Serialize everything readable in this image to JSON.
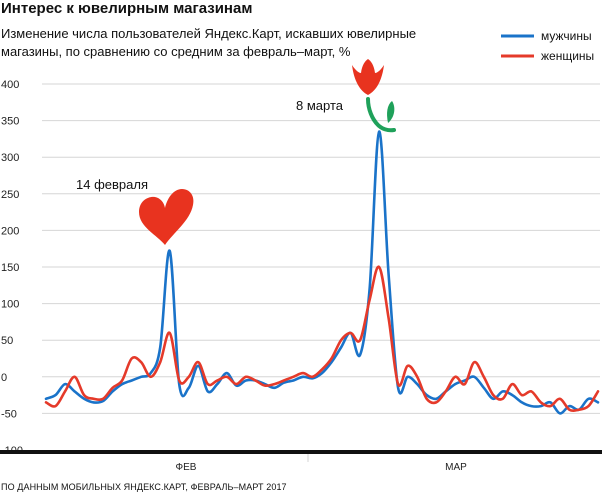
{
  "title": "Интерес к ювелирным магазинам",
  "subtitle": "Изменение числа пользователей Яндекс.Карт, искавших ювелирные магазины, по сравнению со средним за февраль–март, %",
  "source": "ПО ДАННЫМ МОБИЛЬНЫХ ЯНДЕКС.КАРТ, ФЕВРАЛЬ–МАРТ 2017",
  "colors": {
    "men": "#1a73c9",
    "women": "#e53a2a",
    "heart": "#e8331f",
    "stem": "#1fa15a",
    "grid": "#d6d6d6",
    "axis": "#111111"
  },
  "chart_data": {
    "type": "line",
    "ylim": [
      -100,
      400
    ],
    "yticks": [
      "400",
      "350",
      "300",
      "250",
      "200",
      "150",
      "100",
      "50",
      "0",
      "-50",
      "-100"
    ],
    "x_labels": [
      "ФЕВ",
      "МАР"
    ],
    "legend": {
      "position": "top-right",
      "items": [
        "мужчины",
        "женщины"
      ]
    },
    "annotations": [
      {
        "text": "14 февраля",
        "day": 14
      },
      {
        "text": "8 марта",
        "day": 36
      }
    ],
    "series": [
      {
        "name": "мужчины",
        "color": "#1a73c9",
        "values": [
          -30,
          -25,
          -10,
          -20,
          -30,
          -35,
          -33,
          -20,
          -10,
          -5,
          0,
          5,
          40,
          172,
          -10,
          -15,
          15,
          -20,
          -10,
          5,
          -12,
          -5,
          -5,
          -10,
          -15,
          -8,
          -5,
          0,
          -2,
          5,
          20,
          40,
          60,
          30,
          120,
          335,
          140,
          -15,
          0,
          -10,
          -25,
          -30,
          -20,
          -10,
          -5,
          0,
          -15,
          -30,
          -20,
          -25,
          -35,
          -40,
          -40,
          -35,
          -50,
          -40,
          -45,
          -30,
          -35
        ]
      },
      {
        "name": "женщины",
        "color": "#e53a2a",
        "values": [
          -35,
          -40,
          -20,
          0,
          -25,
          -30,
          -30,
          -15,
          -5,
          25,
          20,
          0,
          20,
          60,
          -5,
          0,
          20,
          -10,
          -5,
          0,
          -10,
          0,
          -5,
          -12,
          -10,
          -5,
          0,
          5,
          0,
          10,
          25,
          50,
          60,
          50,
          105,
          150,
          80,
          -10,
          15,
          0,
          -30,
          -35,
          -20,
          0,
          -10,
          20,
          0,
          -25,
          -30,
          -10,
          -25,
          -20,
          -35,
          -40,
          -30,
          -45,
          -45,
          -40,
          -20
        ]
      }
    ]
  }
}
